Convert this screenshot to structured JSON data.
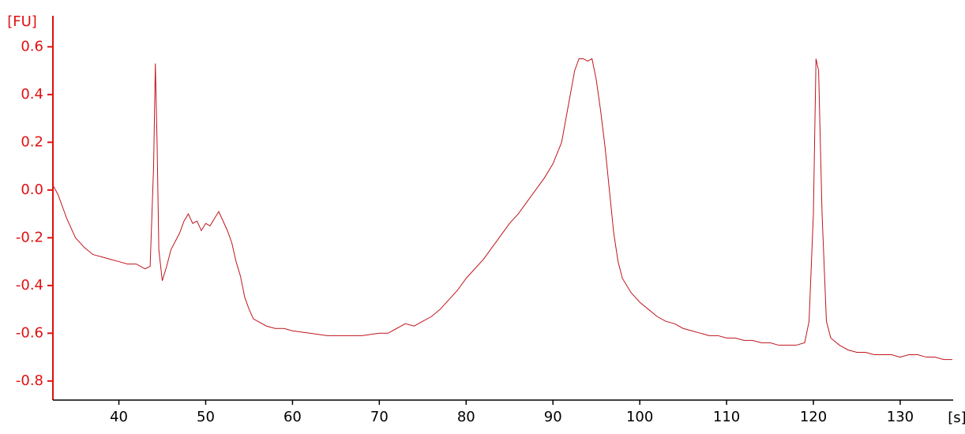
{
  "chart_data": {
    "type": "line",
    "y_label": "[FU]",
    "x_label": "[s]",
    "y_axis_color": "#e01010",
    "x_axis_color": "#000000",
    "xlim": [
      32.4,
      136.1
    ],
    "ylim": [
      -0.88,
      0.73
    ],
    "xticks": [
      40,
      50,
      60,
      70,
      80,
      90,
      100,
      110,
      120,
      130
    ],
    "yticks": [
      0.6,
      0.4,
      0.2,
      {
        "value": 0,
        "label": "0.0"
      },
      -0.2,
      -0.4,
      -0.6,
      -0.8
    ],
    "x": [
      32.4,
      33,
      34,
      35,
      36,
      37,
      38,
      39,
      40,
      41,
      42,
      43,
      43.6,
      44.0,
      44.2,
      44.4,
      44.6,
      45,
      45.5,
      46,
      47,
      47.5,
      48,
      48.5,
      49,
      49.5,
      50,
      50.5,
      51,
      51.5,
      52,
      52.5,
      53,
      53.5,
      54,
      54.5,
      55,
      55.5,
      56,
      57,
      58,
      59,
      60,
      62,
      64,
      66,
      68,
      70,
      71,
      72,
      73,
      74,
      75,
      76,
      77,
      78,
      79,
      80,
      81,
      82,
      83,
      84,
      85,
      86,
      87,
      88,
      89,
      90,
      91,
      91.5,
      92,
      92.5,
      93,
      93.5,
      94,
      94.5,
      95,
      95.5,
      96,
      96.5,
      97,
      97.5,
      98,
      99,
      100,
      101,
      102,
      103,
      104,
      105,
      106,
      107,
      108,
      109,
      110,
      111,
      112,
      113,
      114,
      115,
      116,
      117,
      118,
      119,
      119.5,
      120,
      120.3,
      120.6,
      121,
      121.5,
      122,
      123,
      124,
      125,
      126,
      127,
      128,
      129,
      130,
      131,
      132,
      133,
      134,
      135,
      136
    ],
    "series": [
      {
        "color": "#c0141c",
        "values": [
          0.02,
          -0.02,
          -0.12,
          -0.2,
          -0.24,
          -0.27,
          -0.28,
          -0.29,
          -0.3,
          -0.31,
          -0.31,
          -0.33,
          -0.32,
          0.1,
          0.53,
          0.2,
          -0.25,
          -0.38,
          -0.32,
          -0.25,
          -0.18,
          -0.13,
          -0.1,
          -0.14,
          -0.13,
          -0.17,
          -0.14,
          -0.15,
          -0.12,
          -0.09,
          -0.13,
          -0.17,
          -0.22,
          -0.3,
          -0.36,
          -0.45,
          -0.5,
          -0.54,
          -0.55,
          -0.57,
          -0.58,
          -0.58,
          -0.59,
          -0.6,
          -0.61,
          -0.61,
          -0.61,
          -0.6,
          -0.6,
          -0.58,
          -0.56,
          -0.57,
          -0.55,
          -0.53,
          -0.5,
          -0.46,
          -0.42,
          -0.37,
          -0.33,
          -0.29,
          -0.24,
          -0.19,
          -0.14,
          -0.1,
          -0.05,
          0.0,
          0.05,
          0.11,
          0.2,
          0.3,
          0.4,
          0.5,
          0.55,
          0.55,
          0.54,
          0.55,
          0.46,
          0.33,
          0.18,
          0.0,
          -0.18,
          -0.3,
          -0.37,
          -0.43,
          -0.47,
          -0.5,
          -0.53,
          -0.55,
          -0.56,
          -0.58,
          -0.59,
          -0.6,
          -0.61,
          -0.61,
          -0.62,
          -0.62,
          -0.63,
          -0.63,
          -0.64,
          -0.64,
          -0.65,
          -0.65,
          -0.65,
          -0.64,
          -0.55,
          -0.1,
          0.55,
          0.5,
          -0.1,
          -0.55,
          -0.62,
          -0.65,
          -0.67,
          -0.68,
          -0.68,
          -0.69,
          -0.69,
          -0.69,
          -0.7,
          -0.69,
          -0.69,
          -0.7,
          -0.7,
          -0.71,
          -0.71
        ]
      }
    ]
  }
}
